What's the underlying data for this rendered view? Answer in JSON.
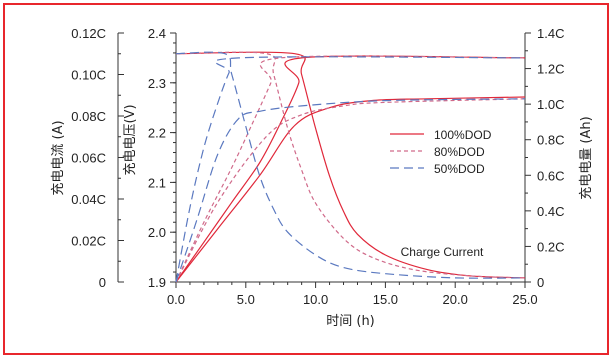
{
  "chart_data": {
    "type": "line",
    "title": "",
    "xlabel": "时间 (h)",
    "y_left_current_label": "充电电流 (A)",
    "y_left_voltage_label": "充电电压(V)",
    "y_right_label": "充电电量 (Ah)",
    "xlim": [
      0,
      25
    ],
    "ylim_voltage": [
      1.9,
      2.4
    ],
    "ylim_current": [
      0,
      0.12
    ],
    "ylim_capacity": [
      0,
      1.4
    ],
    "x_ticks": [
      "0.0",
      "5.0",
      "10.0",
      "15.0",
      "20.0",
      "25.0"
    ],
    "voltage_ticks": [
      "1.9",
      "2.0",
      "2.1",
      "2.2",
      "2.3",
      "2.4"
    ],
    "current_ticks": [
      "0",
      "0.02C",
      "0.04C",
      "0.06C",
      "0.08C",
      "0.10C",
      "0.12C"
    ],
    "capacity_ticks": [
      "0",
      "0.2C",
      "0.4C",
      "0.6C",
      "0.8C",
      "1.0C",
      "1.2C",
      "1.4C"
    ],
    "legend_position": "right-middle",
    "annotation": "Charge Current",
    "series": [
      {
        "name": "100%DOD",
        "color": "#e0283a",
        "dash": "solid",
        "voltage": [
          [
            0,
            1.9
          ],
          [
            2,
            1.98
          ],
          [
            4,
            2.06
          ],
          [
            6,
            2.14
          ],
          [
            7.5,
            2.22
          ],
          [
            8.8,
            2.3
          ],
          [
            9,
            2.35
          ],
          [
            25,
            2.35
          ]
        ],
        "current": [
          [
            0,
            0.11
          ],
          [
            8.5,
            0.11
          ],
          [
            9,
            0.1
          ],
          [
            10,
            0.074
          ],
          [
            11,
            0.051
          ],
          [
            12,
            0.034
          ],
          [
            13,
            0.023
          ],
          [
            15,
            0.013
          ],
          [
            18,
            0.006
          ],
          [
            21,
            0.003
          ],
          [
            25,
            0.002
          ]
        ],
        "capacity": [
          [
            0,
            0
          ],
          [
            3,
            0.3
          ],
          [
            6,
            0.6
          ],
          [
            8.5,
            0.88
          ],
          [
            11,
            0.98
          ],
          [
            14,
            1.02
          ],
          [
            18,
            1.03
          ],
          [
            25,
            1.04
          ]
        ]
      },
      {
        "name": "80%DOD",
        "color": "#d06a8a",
        "dash": "dashed-short",
        "voltage": [
          [
            0,
            1.9
          ],
          [
            2,
            2.02
          ],
          [
            4,
            2.13
          ],
          [
            5.5,
            2.22
          ],
          [
            6.8,
            2.3
          ],
          [
            7.5,
            2.35
          ],
          [
            25,
            2.35
          ]
        ],
        "current": [
          [
            0,
            0.11
          ],
          [
            6.5,
            0.11
          ],
          [
            7,
            0.1
          ],
          [
            8,
            0.074
          ],
          [
            9,
            0.054
          ],
          [
            10,
            0.038
          ],
          [
            12,
            0.021
          ],
          [
            14,
            0.012
          ],
          [
            17,
            0.006
          ],
          [
            21,
            0.003
          ],
          [
            25,
            0.002
          ]
        ],
        "capacity": [
          [
            0,
            0
          ],
          [
            3,
            0.45
          ],
          [
            6.5,
            0.82
          ],
          [
            9,
            0.94
          ],
          [
            12,
            0.99
          ],
          [
            15,
            1.01
          ],
          [
            25,
            1.03
          ]
        ]
      },
      {
        "name": "50%DOD",
        "color": "#5b79c0",
        "dash": "dashed-long",
        "voltage": [
          [
            0,
            1.9
          ],
          [
            1,
            2.05
          ],
          [
            2,
            2.17
          ],
          [
            3,
            2.26
          ],
          [
            3.8,
            2.32
          ],
          [
            4.5,
            2.35
          ],
          [
            25,
            2.35
          ]
        ],
        "current": [
          [
            0,
            0.11
          ],
          [
            3.5,
            0.11
          ],
          [
            4,
            0.1
          ],
          [
            5,
            0.075
          ],
          [
            6,
            0.051
          ],
          [
            7,
            0.035
          ],
          [
            8,
            0.024
          ],
          [
            10,
            0.013
          ],
          [
            12,
            0.007
          ],
          [
            15,
            0.004
          ],
          [
            20,
            0.002
          ],
          [
            25,
            0.002
          ]
        ],
        "capacity": [
          [
            0,
            0
          ],
          [
            1.5,
            0.35
          ],
          [
            3,
            0.72
          ],
          [
            4.5,
            0.92
          ],
          [
            6,
            0.96
          ],
          [
            9,
            0.99
          ],
          [
            15,
            1.02
          ],
          [
            25,
            1.03
          ]
        ]
      }
    ]
  }
}
